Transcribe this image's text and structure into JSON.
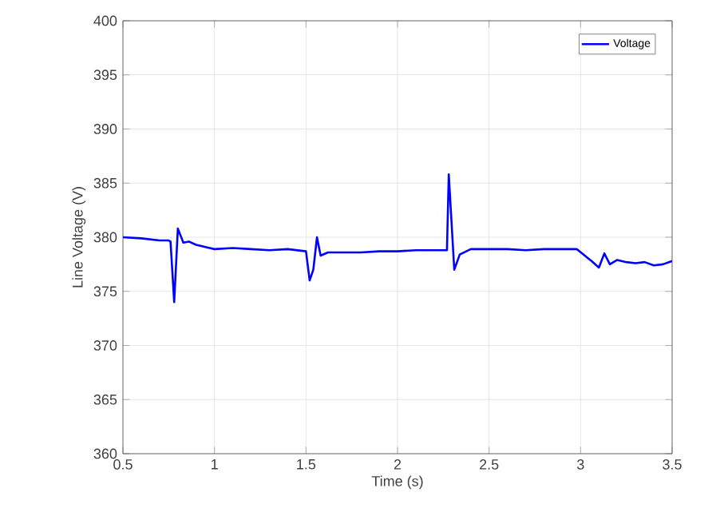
{
  "chart_data": {
    "type": "line",
    "xlabel": "Time (s)",
    "ylabel": "Line Voltage (V)",
    "x": [
      0.5,
      0.6,
      0.7,
      0.75,
      0.76,
      0.78,
      0.8,
      0.83,
      0.86,
      0.9,
      0.95,
      1.0,
      1.1,
      1.2,
      1.3,
      1.4,
      1.5,
      1.52,
      1.54,
      1.56,
      1.58,
      1.62,
      1.7,
      1.8,
      1.9,
      2.0,
      2.1,
      2.2,
      2.27,
      2.28,
      2.31,
      2.34,
      2.4,
      2.5,
      2.6,
      2.7,
      2.8,
      2.9,
      2.98,
      3.03,
      3.06,
      3.1,
      3.13,
      3.16,
      3.2,
      3.25,
      3.3,
      3.35,
      3.4,
      3.45,
      3.5
    ],
    "series": [
      {
        "name": "Voltage",
        "color": "#0000ff",
        "values": [
          380,
          379.9,
          379.7,
          379.7,
          379.6,
          374,
          380.8,
          379.5,
          379.6,
          379.3,
          379.1,
          378.9,
          379,
          378.9,
          378.8,
          378.9,
          378.7,
          376,
          377,
          380,
          378.3,
          378.6,
          378.6,
          378.6,
          378.7,
          378.7,
          378.8,
          378.8,
          378.8,
          385.8,
          377,
          378.4,
          378.9,
          378.9,
          378.9,
          378.8,
          378.9,
          378.9,
          378.9,
          378.2,
          377.8,
          377.2,
          378.5,
          377.5,
          377.9,
          377.7,
          377.6,
          377.7,
          377.4,
          377.5,
          377.8
        ]
      }
    ],
    "xlim": [
      0.5,
      3.5
    ],
    "ylim": [
      360,
      400
    ],
    "xticks": [
      0.5,
      1,
      1.5,
      2,
      2.5,
      3,
      3.5
    ],
    "yticks": [
      360,
      365,
      370,
      375,
      380,
      385,
      390,
      395,
      400
    ],
    "grid": true,
    "legend": "top right",
    "line_style": "solid",
    "marker": "none"
  }
}
